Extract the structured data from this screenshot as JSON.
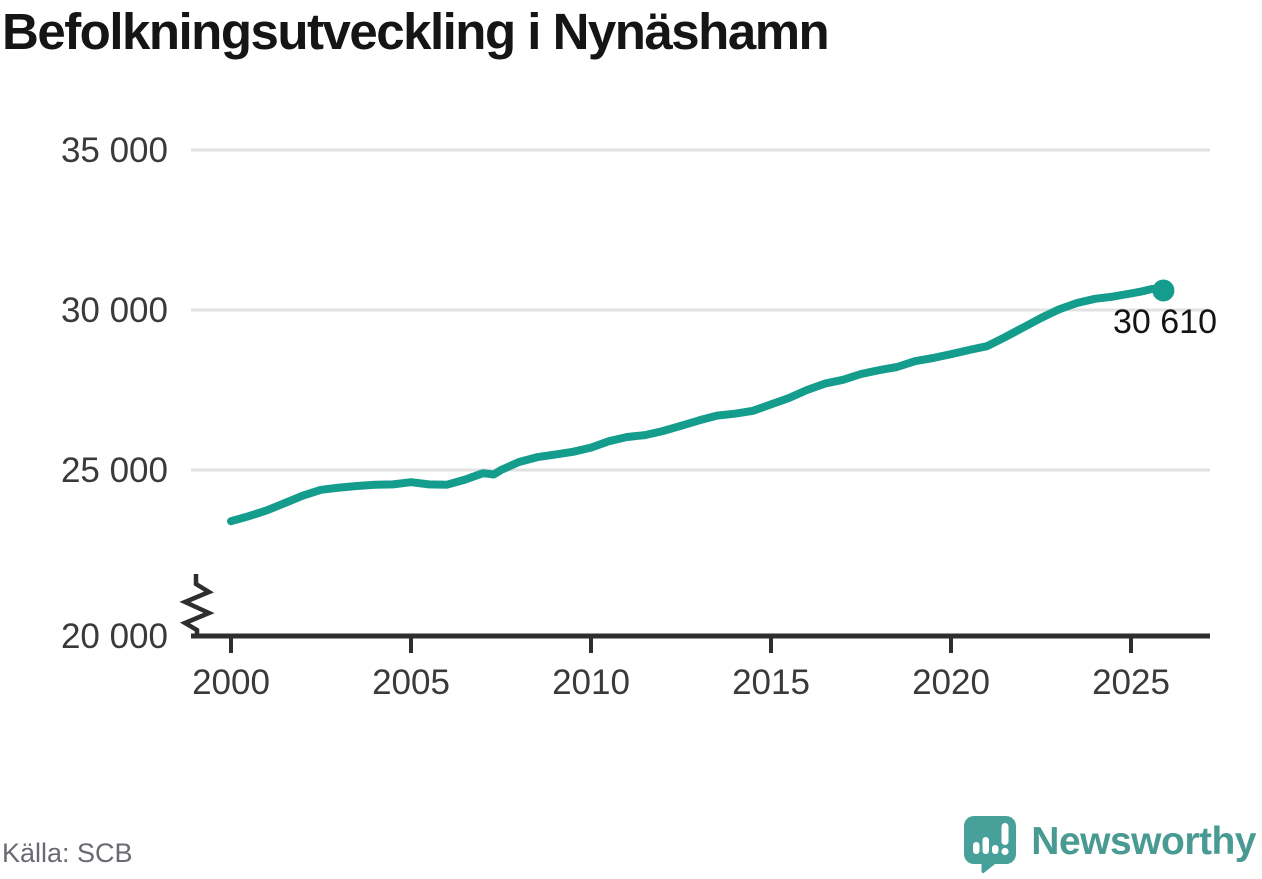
{
  "chart_data": {
    "type": "line",
    "title": "Befolkningsutveckling i Nynäshamn",
    "xlabel": "",
    "ylabel": "",
    "xlim": [
      2000,
      2027
    ],
    "ylim": [
      20000,
      35000
    ],
    "grid": true,
    "legend": "none",
    "axis_break_bottom": true,
    "x_ticks": [
      2000,
      2005,
      2010,
      2015,
      2020,
      2025
    ],
    "y_ticks": [
      {
        "value": 20000,
        "label": "20 000"
      },
      {
        "value": 25000,
        "label": "25 000"
      },
      {
        "value": 30000,
        "label": "30 000"
      },
      {
        "value": 35000,
        "label": "35 000"
      }
    ],
    "end_point": {
      "x": 2025.9,
      "value": 30610,
      "label": "30 610"
    },
    "points": [
      [
        2000,
        23400
      ],
      [
        2000.5,
        23560
      ],
      [
        2001,
        23740
      ],
      [
        2001.5,
        23970
      ],
      [
        2002,
        24200
      ],
      [
        2002.5,
        24380
      ],
      [
        2003,
        24450
      ],
      [
        2003.5,
        24500
      ],
      [
        2004,
        24540
      ],
      [
        2004.5,
        24550
      ],
      [
        2005,
        24620
      ],
      [
        2005.5,
        24550
      ],
      [
        2006,
        24540
      ],
      [
        2006.5,
        24700
      ],
      [
        2007,
        24900
      ],
      [
        2007.3,
        24860
      ],
      [
        2007.5,
        25000
      ],
      [
        2008,
        25250
      ],
      [
        2008.5,
        25400
      ],
      [
        2009,
        25480
      ],
      [
        2009.5,
        25570
      ],
      [
        2010,
        25700
      ],
      [
        2010.5,
        25900
      ],
      [
        2011,
        26030
      ],
      [
        2011.5,
        26090
      ],
      [
        2012,
        26220
      ],
      [
        2012.5,
        26380
      ],
      [
        2013,
        26550
      ],
      [
        2013.5,
        26700
      ],
      [
        2014,
        26760
      ],
      [
        2014.5,
        26850
      ],
      [
        2015,
        27050
      ],
      [
        2015.5,
        27250
      ],
      [
        2016,
        27500
      ],
      [
        2016.5,
        27700
      ],
      [
        2017,
        27820
      ],
      [
        2017.5,
        28000
      ],
      [
        2018,
        28120
      ],
      [
        2018.5,
        28220
      ],
      [
        2019,
        28400
      ],
      [
        2019.5,
        28500
      ],
      [
        2020,
        28620
      ],
      [
        2020.5,
        28750
      ],
      [
        2021,
        28870
      ],
      [
        2021.5,
        29150
      ],
      [
        2022,
        29450
      ],
      [
        2022.5,
        29750
      ],
      [
        2023,
        30020
      ],
      [
        2023.5,
        30220
      ],
      [
        2024,
        30350
      ],
      [
        2024.5,
        30420
      ],
      [
        2025,
        30520
      ],
      [
        2025.3,
        30580
      ],
      [
        2025.6,
        30660
      ],
      [
        2025.9,
        30610
      ]
    ],
    "colors": {
      "line": "#149c8d",
      "grid": "#e1e1e1",
      "axis": "#2e2e2e",
      "tick_text": "#3a3a3a",
      "end_label_text": "#141414"
    }
  },
  "footer": {
    "source": "Källa: SCB",
    "brand_name": "Newsworthy",
    "brand_color": "#489a93",
    "brand_icon": "newsworthy-icon"
  }
}
